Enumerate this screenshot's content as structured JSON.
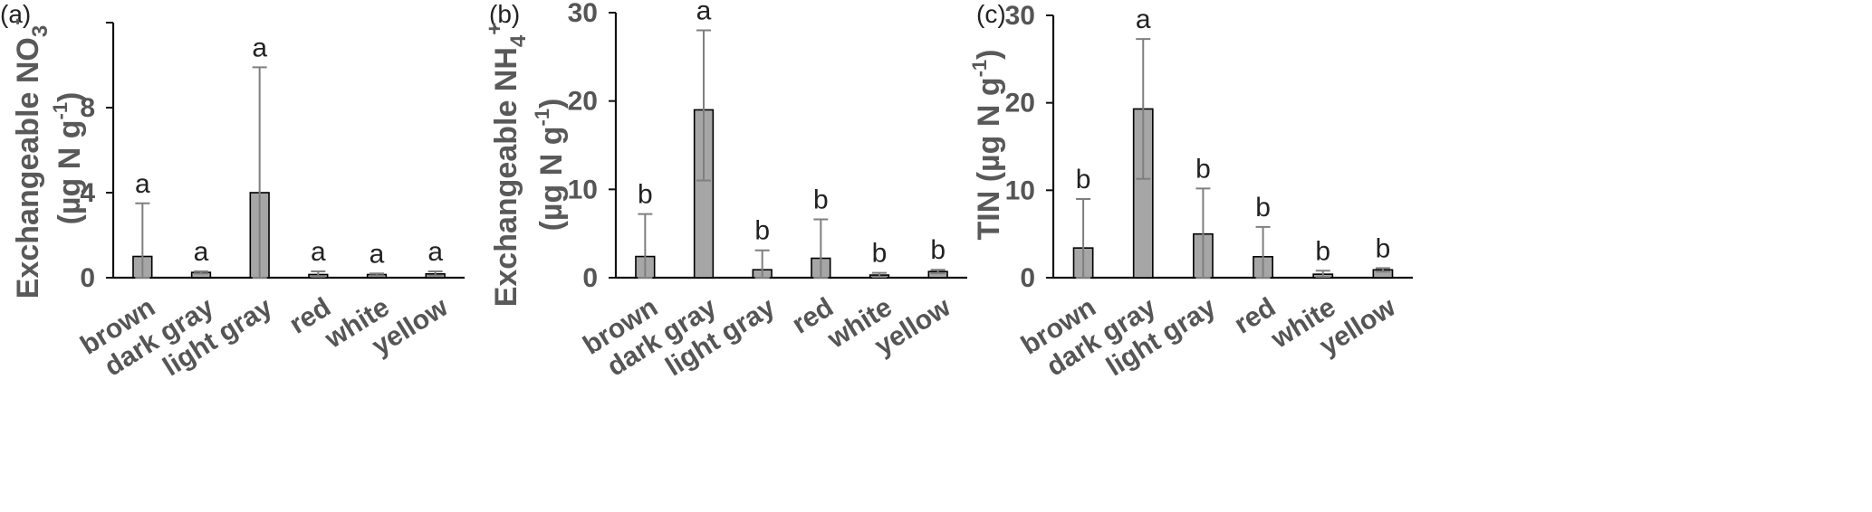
{
  "figure": {
    "colors": {
      "bar_fill": "#a6a6a6",
      "bar_stroke": "#000000",
      "error_bar": "#7f7f7f",
      "axis": "#111111",
      "axis_text": "#595959"
    }
  },
  "chart_data": [
    {
      "panel_label": "(a)",
      "type": "bar",
      "ylabel_main": "Exchangeable NO",
      "ylabel_sub": "3",
      "ylabel_sup": "-",
      "ylabel_unit": "(µg N g",
      "ylabel_unit_sup": "-1",
      "ylabel_unit_close": ")",
      "ylim": [
        0,
        12
      ],
      "yticks": [
        0,
        4,
        8
      ],
      "categories": [
        "brown",
        "dark gray",
        "light gray",
        "red",
        "white",
        "yellow"
      ],
      "values": [
        1.0,
        0.25,
        4.0,
        0.15,
        0.15,
        0.18
      ],
      "error_upper": [
        3.5,
        0.3,
        9.9,
        0.3,
        0.2,
        0.3
      ],
      "error_lower": [
        0.0,
        0.2,
        0.0,
        0.05,
        0.1,
        0.1
      ],
      "letters": [
        "a",
        "a",
        "a",
        "a",
        "a",
        "a"
      ]
    },
    {
      "panel_label": "(b)",
      "type": "bar",
      "ylabel_main": "Exchangeable NH",
      "ylabel_sub": "4",
      "ylabel_sup": "+",
      "ylabel_unit": "(µg N g",
      "ylabel_unit_sup": "-1",
      "ylabel_unit_close": ")",
      "ylim": [
        0,
        30
      ],
      "yticks": [
        0,
        10,
        20,
        30
      ],
      "categories": [
        "brown",
        "dark gray",
        "light gray",
        "red",
        "white",
        "yellow"
      ],
      "values": [
        2.4,
        19.0,
        0.9,
        2.2,
        0.3,
        0.7
      ],
      "error_upper": [
        7.2,
        28.0,
        3.1,
        6.6,
        0.55,
        0.9
      ],
      "error_lower": [
        0.0,
        11.0,
        0.0,
        0.0,
        0.1,
        0.5
      ],
      "letters": [
        "b",
        "a",
        "b",
        "b",
        "b",
        "b"
      ]
    },
    {
      "panel_label": "(c)",
      "type": "bar",
      "ylabel_main": "TIN",
      "ylabel_sub": "",
      "ylabel_sup": "",
      "ylabel_unit": "(µg N g",
      "ylabel_unit_sup": "-1",
      "ylabel_unit_close": ")",
      "ylim": [
        0,
        30
      ],
      "yticks": [
        0,
        10,
        20,
        30
      ],
      "categories": [
        "brown",
        "dark gray",
        "light gray",
        "red",
        "white",
        "yellow"
      ],
      "values": [
        3.4,
        19.3,
        5.0,
        2.4,
        0.4,
        0.9
      ],
      "error_upper": [
        9.0,
        27.3,
        10.2,
        5.8,
        0.8,
        1.1
      ],
      "error_lower": [
        0.0,
        11.3,
        0.0,
        0.0,
        0.1,
        0.7
      ],
      "letters": [
        "b",
        "a",
        "b",
        "b",
        "b",
        "b"
      ]
    }
  ]
}
